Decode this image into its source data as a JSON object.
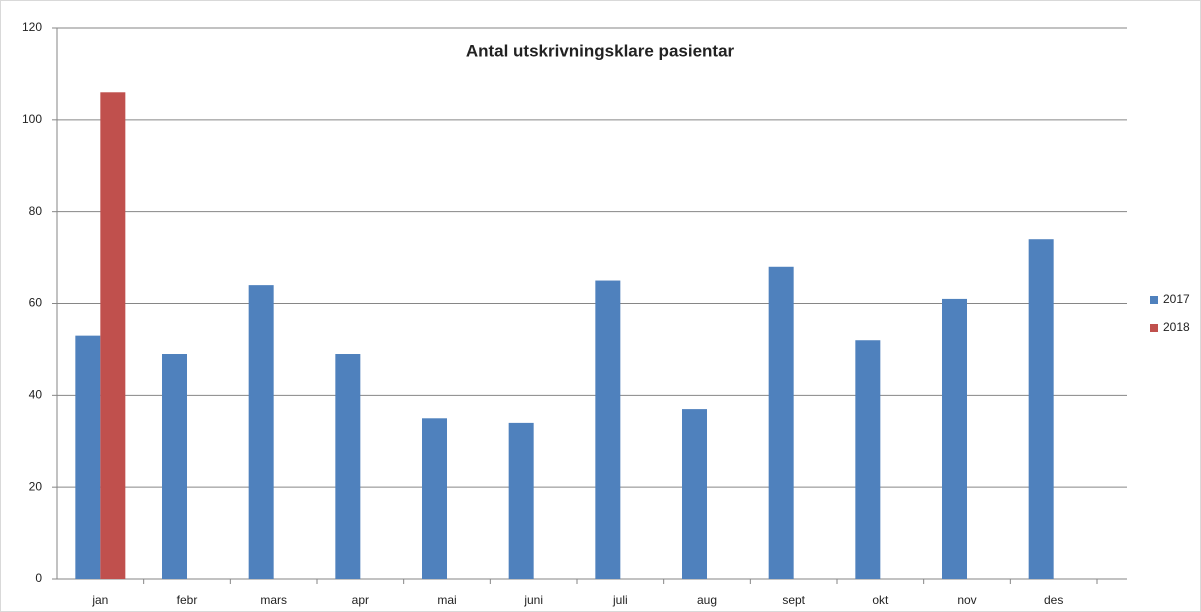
{
  "chart_data": {
    "type": "bar",
    "title": "Antal utskrivningsklare  pasientar",
    "categories": [
      "jan",
      "febr",
      "mars",
      "apr",
      "mai",
      "juni",
      "juli",
      "aug",
      "sept",
      "okt",
      "nov",
      "des"
    ],
    "series": [
      {
        "name": "2017",
        "color": "#4f81bd",
        "values": [
          53,
          49,
          64,
          49,
          35,
          34,
          65,
          37,
          68,
          52,
          61,
          74
        ]
      },
      {
        "name": "2018",
        "color": "#c0504d",
        "values": [
          106,
          null,
          null,
          null,
          null,
          null,
          null,
          null,
          null,
          null,
          null,
          null
        ]
      }
    ],
    "ylim": [
      0,
      120
    ],
    "yticks": [
      0,
      20,
      40,
      60,
      80,
      100,
      120
    ],
    "grid": true,
    "legend": "right"
  }
}
